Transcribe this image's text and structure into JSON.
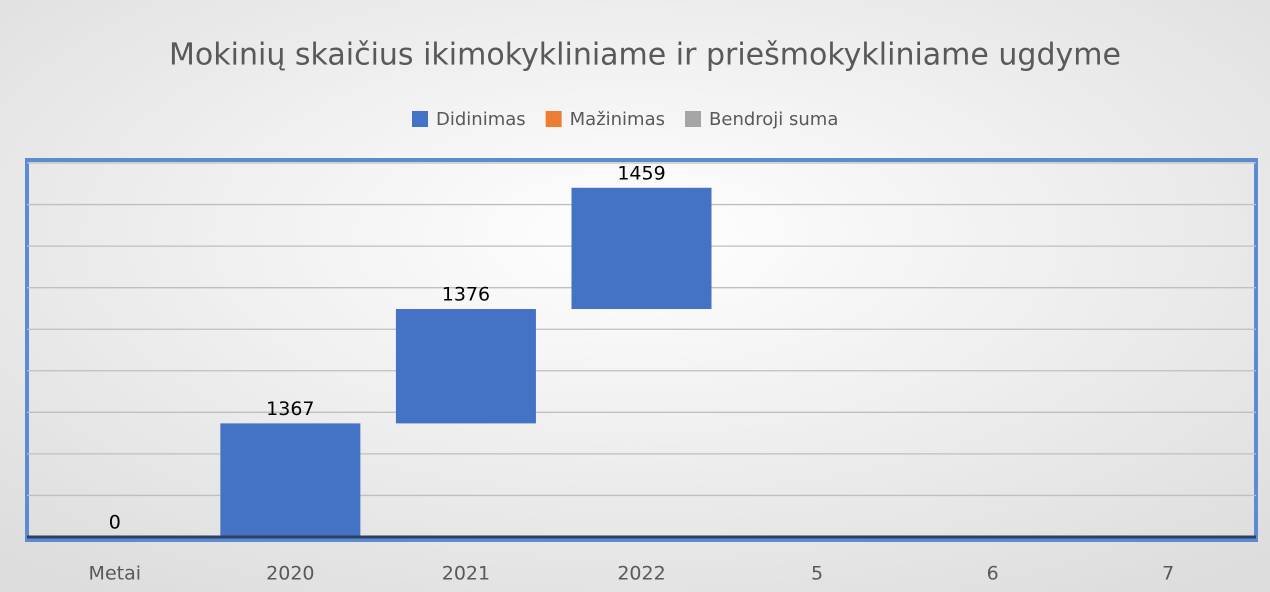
{
  "chart_data": {
    "type": "waterfall",
    "title": "Mokinių skaičius ikimokykliniame ir priešmokykliniame ugdyme",
    "categories": [
      "Metai",
      "2020",
      "2021",
      "2022",
      "5",
      "6",
      "7"
    ],
    "series": [
      {
        "name": "Didinimas",
        "color": "#4472c4",
        "values": [
          0,
          1367,
          1376,
          1459,
          null,
          null,
          null
        ]
      },
      {
        "name": "Mažinimas",
        "color": "#ed7d31",
        "values": [
          null,
          null,
          null,
          null,
          null,
          null,
          null
        ]
      },
      {
        "name": "Bendroji suma",
        "color": "#a5a5a5",
        "values": [
          null,
          null,
          null,
          null,
          null,
          null,
          null
        ]
      }
    ],
    "ylim": [
      0,
      4500
    ],
    "yticks": [
      0,
      500,
      1000,
      1500,
      2000,
      2500,
      3000,
      3500,
      4000,
      4500
    ],
    "grid": true,
    "legend": "top"
  }
}
